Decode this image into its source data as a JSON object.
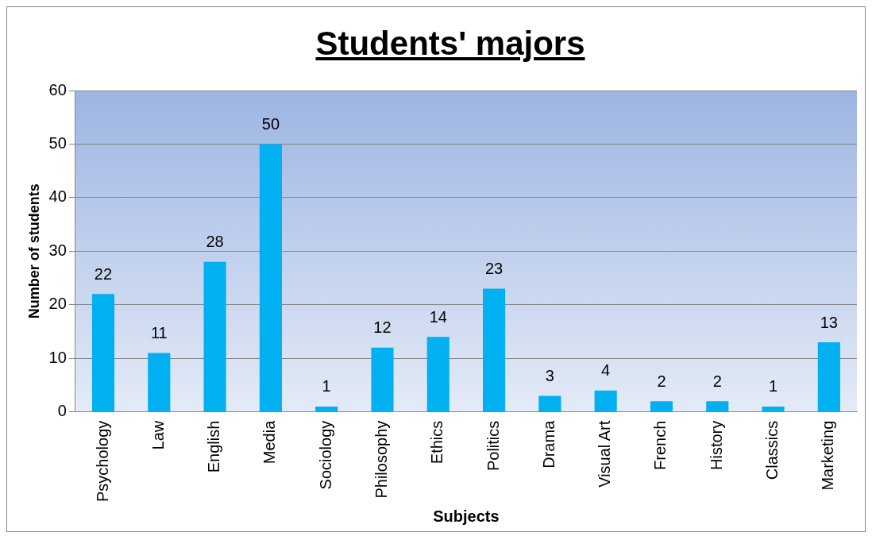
{
  "chart_data": {
    "type": "bar",
    "title": "Students' majors",
    "xlabel": "Subjects",
    "ylabel": "Number of students",
    "categories": [
      "Psychology",
      "Law",
      "English",
      "Media",
      "Sociology",
      "Philosophy",
      "Ethics",
      "Politics",
      "Drama",
      "Visual Art",
      "French",
      "History",
      "Classics",
      "Marketing"
    ],
    "values": [
      22,
      11,
      28,
      50,
      1,
      12,
      14,
      23,
      3,
      4,
      2,
      2,
      1,
      13
    ],
    "color": "#00b0f0",
    "ylim": [
      0,
      60
    ],
    "yticks": [
      0,
      10,
      20,
      30,
      40,
      50,
      60
    ],
    "grid": "y",
    "data_labels": true,
    "legend": false
  }
}
